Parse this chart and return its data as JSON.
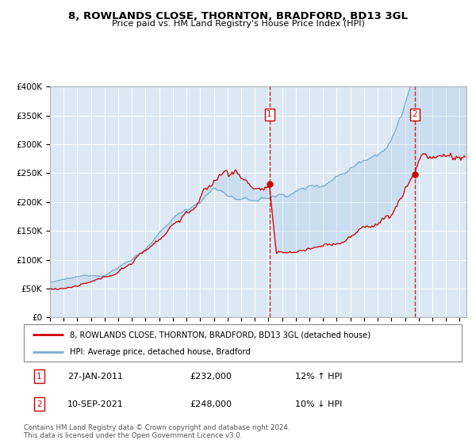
{
  "title": "8, ROWLANDS CLOSE, THORNTON, BRADFORD, BD13 3GL",
  "subtitle": "Price paid vs. HM Land Registry's House Price Index (HPI)",
  "legend_line1": "8, ROWLANDS CLOSE, THORNTON, BRADFORD, BD13 3GL (detached house)",
  "legend_line2": "HPI: Average price, detached house, Bradford",
  "annotation1_date": "27-JAN-2011",
  "annotation1_price": "£232,000",
  "annotation1_hpi": "12% ↑ HPI",
  "annotation2_date": "10-SEP-2021",
  "annotation2_price": "£248,000",
  "annotation2_hpi": "10% ↓ HPI",
  "vline1_x": 2011.07,
  "vline2_x": 2021.7,
  "dot1_x": 2011.07,
  "dot1_y": 232000,
  "dot2_x": 2021.7,
  "dot2_y": 248000,
  "ylim": [
    0,
    400000
  ],
  "xlim": [
    1995.0,
    2025.5
  ],
  "background_color": "#dce9f5",
  "plot_bg": "#dce9f5",
  "footer": "Contains HM Land Registry data © Crown copyright and database right 2024.\nThis data is licensed under the Open Government Licence v3.0.",
  "red_color": "#cc0000",
  "blue_color": "#7aadd4",
  "grid_color": "#ffffff"
}
